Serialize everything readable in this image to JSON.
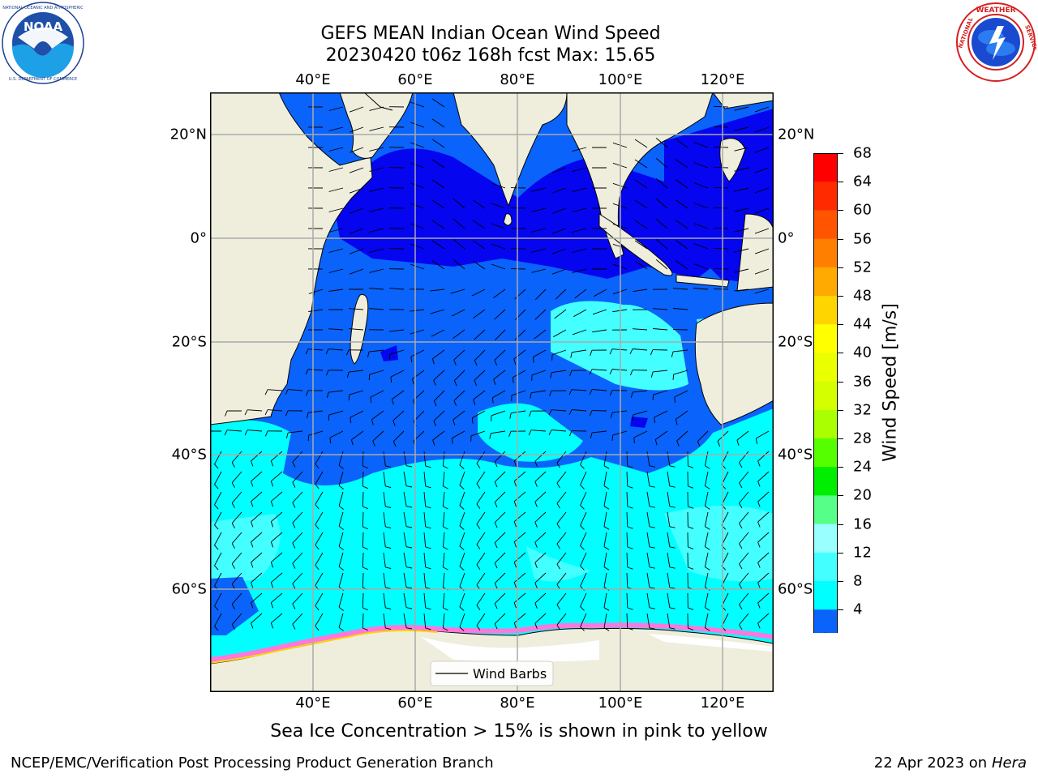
{
  "title": {
    "line1": "GEFS MEAN Indian Ocean Wind Speed",
    "line2": "20230420 t06z 168h fcst   Max: 15.65"
  },
  "logos": {
    "left": "NOAA",
    "left_ring_text": "NATIONAL OCEANIC AND ATMOSPHERIC ADMINISTRATION · U.S. DEPARTMENT OF COMMERCE",
    "right_ring_text": "NATIONAL WEATHER SERVICE"
  },
  "map": {
    "lon_labels": [
      "40°E",
      "60°E",
      "80°E",
      "100°E",
      "120°E"
    ],
    "lat_labels": [
      "20°N",
      "0°",
      "20°S",
      "40°S",
      "60°S"
    ],
    "legend": "Wind Barbs",
    "colors": {
      "land": "#efeedd",
      "speed_4_8": "#0a63fa",
      "speed_below_4": "#0505f0",
      "speed_8_12": "#00ffff",
      "speed_12_16": "#44ffff",
      "ice": "#ff77dd"
    }
  },
  "colorbar": {
    "label": "Wind Speed [m/s]",
    "ticks": [
      "68",
      "64",
      "60",
      "56",
      "52",
      "48",
      "44",
      "40",
      "36",
      "32",
      "28",
      "24",
      "20",
      "16",
      "12",
      "8",
      "4"
    ],
    "colors": [
      "#ff0000",
      "#ff2a00",
      "#ff5500",
      "#ff8000",
      "#ffaa00",
      "#ffd500",
      "#ffff00",
      "#eaff00",
      "#d4ff00",
      "#aaff00",
      "#55ff00",
      "#00ee00",
      "#55ff88",
      "#99ffff",
      "#44ffff",
      "#00ffff",
      "#0a63fa"
    ],
    "under_color": "#0505f0"
  },
  "note": "Sea Ice Concentration > 15% is shown in pink to yellow",
  "footer": {
    "left": "NCEP/EMC/Verification Post Processing Product Generation Branch",
    "right_date": "22 Apr 2023 on ",
    "right_host": "Hera"
  }
}
